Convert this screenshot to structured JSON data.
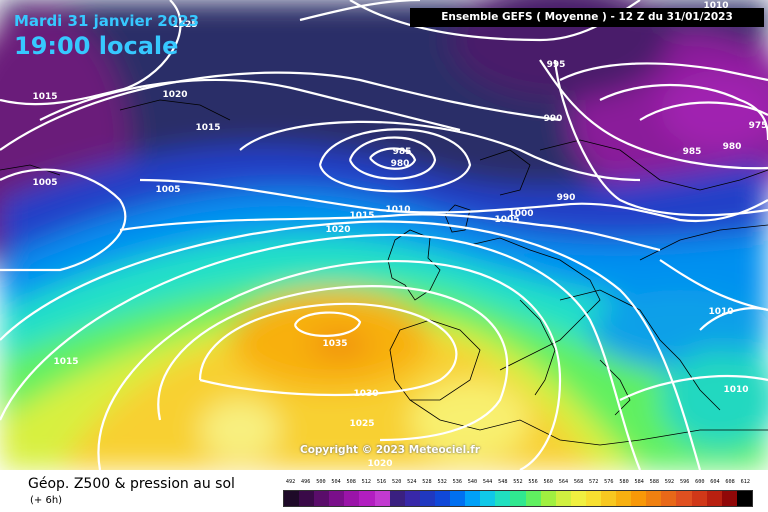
{
  "header": {
    "date": "Mardi 31 janvier 2023",
    "time": "19:00 locale",
    "model": "Ensemble GEFS  ( Moyenne )  -  12 Z du 31/01/2023"
  },
  "copyright": "Copyright © 2023 Meteociel.fr",
  "footer": {
    "title": "Géop. Z500 & pression au sol",
    "subtitle": "(+ 6h)"
  },
  "legend": {
    "values": [
      "492",
      "496",
      "500",
      "504",
      "508",
      "512",
      "516",
      "520",
      "524",
      "528",
      "532",
      "536",
      "540",
      "544",
      "548",
      "552",
      "556",
      "560",
      "564",
      "568",
      "572",
      "576",
      "580",
      "584",
      "588",
      "592",
      "596",
      "600",
      "604",
      "608",
      "612"
    ],
    "colors": [
      "#1e0a28",
      "#3a0a48",
      "#5a0d6a",
      "#7a0f8a",
      "#9a14a8",
      "#b21ec0",
      "#c23ad0",
      "#3a2080",
      "#3828a8",
      "#2038c0",
      "#1048d8",
      "#0070f0",
      "#00a0f8",
      "#10c8e8",
      "#20e0c0",
      "#30e890",
      "#60f060",
      "#a0f040",
      "#d0f040",
      "#f0f040",
      "#f8e030",
      "#f8c820",
      "#f8b010",
      "#f89808",
      "#f08010",
      "#e86818",
      "#e05020",
      "#d03818",
      "#b82010",
      "#900808",
      "#000000"
    ]
  },
  "isobars": [
    {
      "label": "1025"
    },
    {
      "label": "1015"
    },
    {
      "label": "1020"
    },
    {
      "label": "1015"
    },
    {
      "label": "1005"
    },
    {
      "label": "1005"
    },
    {
      "label": "985"
    },
    {
      "label": "980"
    },
    {
      "label": "1015"
    },
    {
      "label": "1010"
    },
    {
      "label": "1020"
    },
    {
      "label": "1000"
    },
    {
      "label": "1005"
    },
    {
      "label": "990"
    },
    {
      "label": "995"
    },
    {
      "label": "990"
    },
    {
      "label": "985"
    },
    {
      "label": "980"
    },
    {
      "label": "975"
    },
    {
      "label": "1010"
    },
    {
      "label": "1035"
    },
    {
      "label": "1030"
    },
    {
      "label": "1025"
    },
    {
      "label": "1020"
    },
    {
      "label": "1015"
    },
    {
      "label": "1010"
    },
    {
      "label": "1010"
    }
  ]
}
